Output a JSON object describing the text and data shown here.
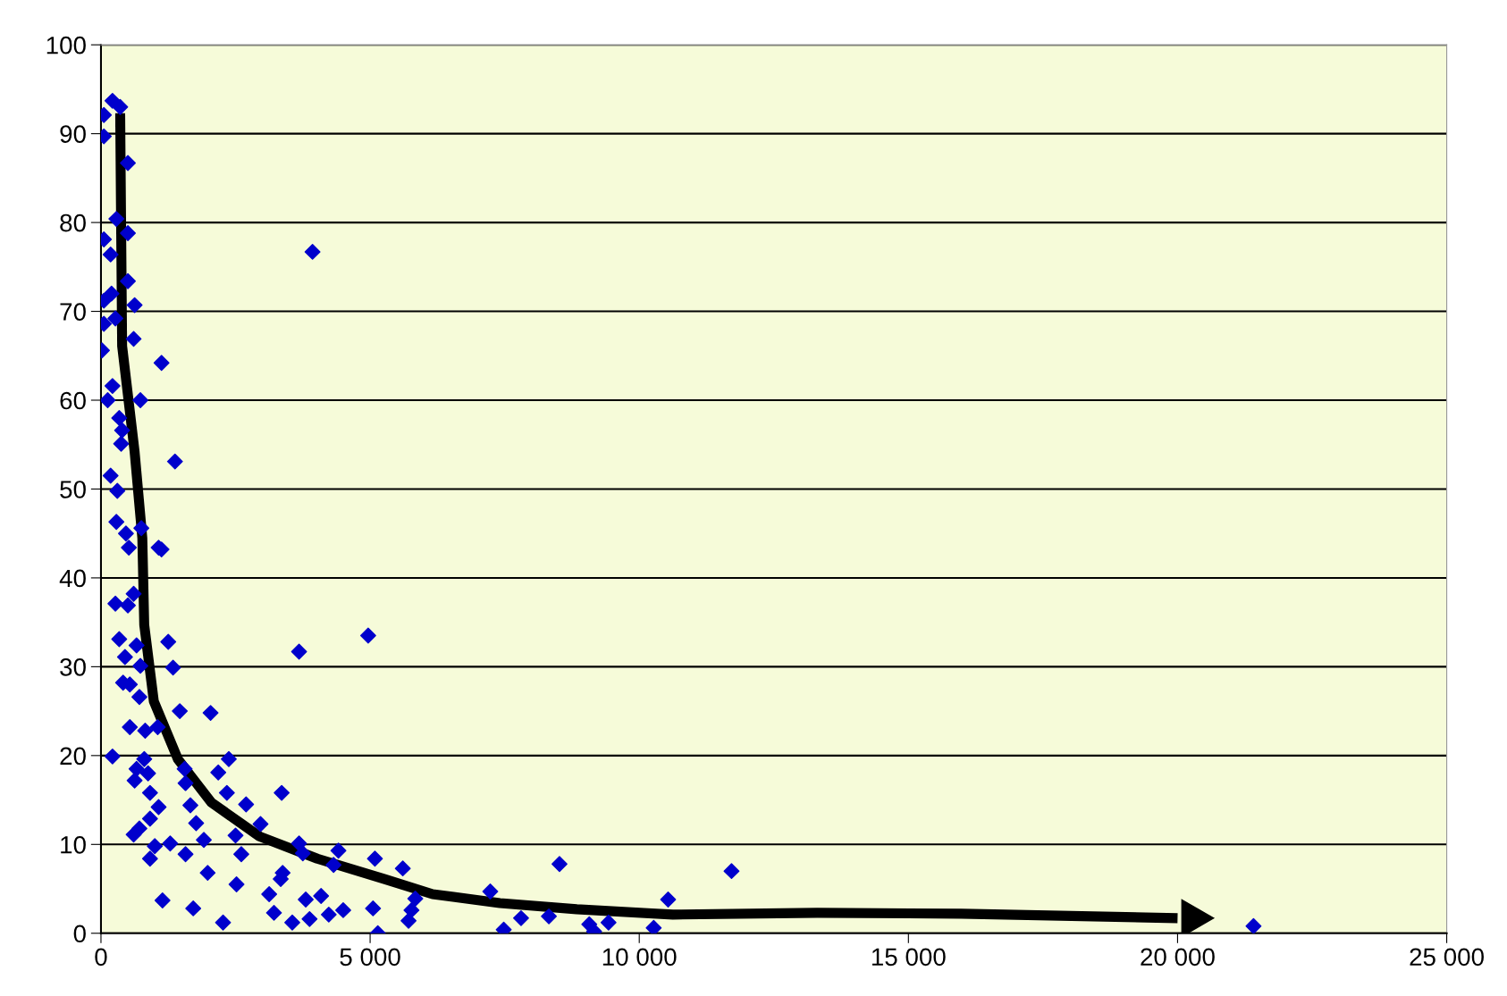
{
  "chart_data": {
    "type": "scatter",
    "xlim": [
      0,
      25000
    ],
    "ylim": [
      0,
      100
    ],
    "xticks": [
      0,
      {
        "value": 5000,
        "label": "5 000"
      },
      {
        "value": 10000,
        "label": "10 000"
      },
      {
        "value": 15000,
        "label": "15 000"
      },
      {
        "value": 20000,
        "label": "20 000"
      },
      {
        "value": 25000,
        "label": "25 000"
      }
    ],
    "yticks": [
      0,
      10,
      20,
      30,
      40,
      50,
      60,
      70,
      80,
      90,
      100
    ],
    "grid": "y",
    "marker": "diamond",
    "legend": false,
    "series": [
      {
        "color": "#0000cc",
        "x": [
          54,
          54,
          214,
          357,
          500,
          54,
          286,
          500,
          179,
          3930,
          500,
          54,
          196,
          625,
          54,
          268,
          607,
          18,
          1125,
          214,
          125,
          732,
          339,
          393,
          375,
          1375,
          179,
          304,
          286,
          750,
          464,
          518,
          1071,
          1125,
          607,
          268,
          500,
          339,
          1250,
          661,
          446,
          3680,
          4964,
          1339,
          732,
          411,
          536,
          1464,
          2036,
          714,
          536,
          821,
          1054,
          214,
          804,
          2375,
          661,
          875,
          1554,
          2179,
          625,
          3357,
          911,
          2339,
          1571,
          2696,
          1661,
          1071,
          911,
          1768,
          2964,
          714,
          607,
          2500,
          1911,
          1286,
          1000,
          3680,
          4411,
          1571,
          2607,
          911,
          3750,
          5089,
          8518,
          5607,
          11714,
          4321,
          1982,
          3375,
          3339,
          2518,
          7232,
          3125,
          1143,
          3804,
          4089,
          10536,
          1714,
          3214,
          4500,
          5054,
          4232,
          5768,
          5839,
          2268,
          3554,
          3875,
          5714,
          7804,
          8321,
          9071,
          9429,
          9161,
          5143,
          7482,
          10268,
          21411
        ],
        "values": [
          92.1,
          89.7,
          93.7,
          93,
          86.7,
          78.1,
          80.4,
          78.8,
          76.4,
          76.7,
          73.4,
          71.2,
          72,
          70.7,
          68.6,
          69.2,
          66.9,
          65.6,
          64.2,
          61.6,
          60,
          60,
          58,
          56.6,
          55.1,
          53.1,
          51.5,
          49.8,
          46.3,
          45.6,
          45,
          43.4,
          43.4,
          43.2,
          38.2,
          37.1,
          36.9,
          33.1,
          32.8,
          32.4,
          31.1,
          31.7,
          33.5,
          29.9,
          30.1,
          28.2,
          28,
          25,
          24.8,
          26.6,
          23.2,
          22.8,
          23.2,
          19.9,
          19.6,
          19.6,
          18.5,
          18,
          18.5,
          18.1,
          17.2,
          15.8,
          15.8,
          15.8,
          16.9,
          14.5,
          14.4,
          14.2,
          12.9,
          12.4,
          12.3,
          11.8,
          11.1,
          11,
          10.5,
          10.1,
          9.8,
          10.1,
          9.3,
          8.9,
          8.9,
          8.4,
          9,
          8.4,
          7.8,
          7.3,
          7,
          7.7,
          6.8,
          6.8,
          6.1,
          5.5,
          4.7,
          4.4,
          3.7,
          3.8,
          4.2,
          3.8,
          2.8,
          2.3,
          2.6,
          2.8,
          2.1,
          2.6,
          3.9,
          1.2,
          1.2,
          1.6,
          1.4,
          1.7,
          1.9,
          1,
          1.2,
          0.2,
          0,
          0.4,
          0.6,
          0.8
        ]
      },
      {
        "type": "line",
        "color": "#000000",
        "marker": "none",
        "line_style": "solid",
        "x": [
          357,
          393,
          625,
          768,
          804,
          982,
          1429,
          2054,
          2946,
          4018,
          5268,
          6161,
          7411,
          8839,
          10625,
          13304,
          15982,
          20000
        ],
        "values": [
          92.3,
          66.1,
          54.2,
          44.5,
          34.7,
          26.1,
          19.6,
          14.7,
          10.9,
          8.4,
          6.1,
          4.4,
          3.4,
          2.7,
          2.1,
          2.3,
          2.2,
          1.7
        ]
      }
    ]
  }
}
